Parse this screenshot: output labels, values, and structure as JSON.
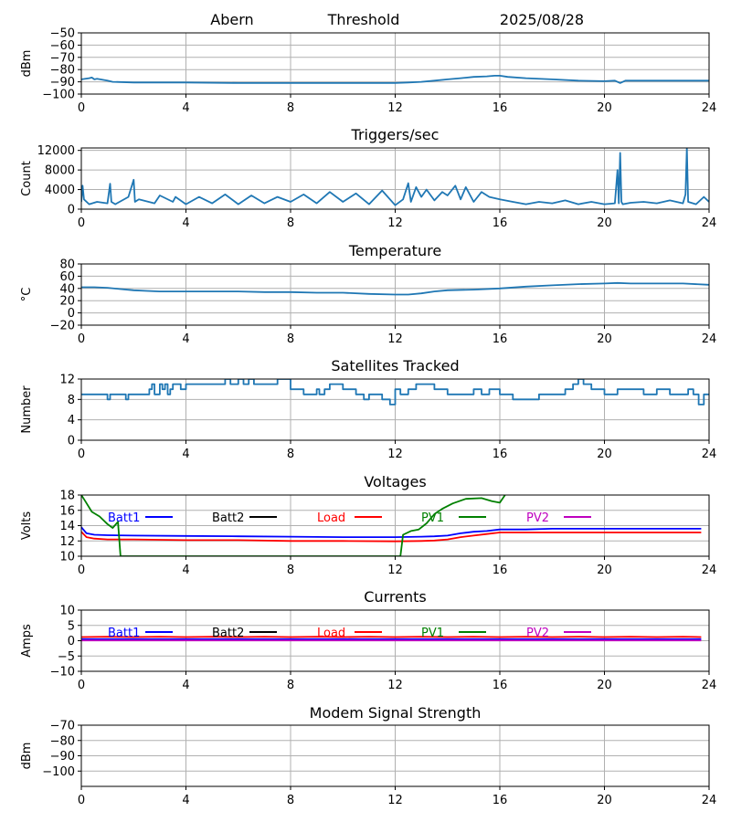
{
  "header": {
    "station": "Abern",
    "mode": "Threshold",
    "date": "2025/08/28"
  },
  "colors": {
    "primary": "#1f77b4",
    "batt1": "#0000ff",
    "batt2": "#000000",
    "load": "#ff0000",
    "pv1": "#008000",
    "pv2": "#bf00bf",
    "grid": "#b0b0b0"
  },
  "chart_data": [
    {
      "id": "signal",
      "type": "line",
      "title": "",
      "ylabel": "dBm",
      "xlim": [
        0,
        24
      ],
      "ylim": [
        -100,
        -50
      ],
      "x_ticks": [
        0,
        4,
        8,
        12,
        16,
        20,
        24
      ],
      "y_ticks": [
        -100,
        -90,
        -80,
        -70,
        -60,
        -50
      ],
      "grid": true,
      "series": [
        {
          "color": "#1f77b4",
          "x": [
            0,
            0.3,
            0.4,
            0.5,
            0.6,
            1.0,
            1.2,
            2,
            4,
            6,
            8,
            10,
            11,
            12,
            12.5,
            13,
            13.5,
            14,
            14.5,
            15,
            15.5,
            15.8,
            16,
            16.3,
            17,
            18,
            19,
            20,
            20.4,
            20.6,
            20.8,
            21,
            22,
            23,
            24
          ],
          "y": [
            -88,
            -87,
            -86.5,
            -88,
            -87.5,
            -89,
            -90,
            -90.5,
            -90.5,
            -91,
            -91,
            -91,
            -91,
            -91,
            -90.5,
            -90,
            -89,
            -88,
            -87,
            -86,
            -85.5,
            -85,
            -85,
            -86,
            -87,
            -88,
            -89,
            -89.5,
            -89,
            -91,
            -89,
            -89,
            -89,
            -89,
            -89
          ]
        }
      ]
    },
    {
      "id": "triggers",
      "type": "line",
      "title": "Triggers/sec",
      "ylabel": "Count",
      "xlim": [
        0,
        24
      ],
      "ylim": [
        0,
        12500
      ],
      "x_ticks": [
        0,
        4,
        8,
        12,
        16,
        20,
        24
      ],
      "y_ticks": [
        0,
        4000,
        8000,
        12000
      ],
      "grid": true,
      "series": [
        {
          "color": "#1f77b4",
          "x": [
            0,
            0.05,
            0.1,
            0.3,
            0.6,
            1.0,
            1.1,
            1.15,
            1.3,
            1.8,
            2.0,
            2.05,
            2.2,
            2.8,
            3.0,
            3.5,
            3.6,
            4.0,
            4.5,
            5.0,
            5.5,
            6.0,
            6.5,
            7.0,
            7.5,
            8.0,
            8.5,
            9.0,
            9.5,
            10.0,
            10.5,
            11.0,
            11.5,
            12.0,
            12.3,
            12.5,
            12.6,
            12.8,
            13.0,
            13.2,
            13.5,
            13.8,
            14.0,
            14.3,
            14.5,
            14.7,
            15.0,
            15.3,
            15.6,
            16.0,
            16.5,
            17.0,
            17.5,
            18.0,
            18.5,
            19.0,
            19.5,
            20.0,
            20.4,
            20.5,
            20.55,
            20.6,
            20.65,
            20.7,
            21.0,
            21.5,
            22.0,
            22.5,
            23.0,
            23.1,
            23.15,
            23.2,
            23.5,
            23.8,
            24
          ],
          "y": [
            1500,
            4800,
            2000,
            1000,
            1500,
            1200,
            5200,
            1500,
            1000,
            2500,
            6000,
            1500,
            2000,
            1200,
            2800,
            1500,
            2500,
            1000,
            2500,
            1200,
            3000,
            1000,
            2800,
            1200,
            2500,
            1500,
            3000,
            1200,
            3500,
            1500,
            3200,
            1000,
            3800,
            800,
            2000,
            5300,
            1500,
            4500,
            2500,
            4000,
            1800,
            3500,
            2800,
            4800,
            2000,
            4500,
            1500,
            3500,
            2500,
            2000,
            1500,
            1000,
            1500,
            1200,
            1800,
            1000,
            1500,
            1000,
            1200,
            8000,
            1200,
            11500,
            1500,
            1000,
            1300,
            1500,
            1200,
            1800,
            1200,
            3000,
            12500,
            1500,
            1000,
            2500,
            1500
          ]
        }
      ]
    },
    {
      "id": "temperature",
      "type": "line",
      "title": "Temperature",
      "ylabel": "°C",
      "xlim": [
        0,
        24
      ],
      "ylim": [
        -20,
        80
      ],
      "x_ticks": [
        0,
        4,
        8,
        12,
        16,
        20,
        24
      ],
      "y_ticks": [
        -20,
        0,
        20,
        40,
        60,
        80
      ],
      "grid": true,
      "series": [
        {
          "color": "#1f77b4",
          "x": [
            0,
            0.5,
            1,
            1.5,
            2,
            2.5,
            3,
            4,
            6,
            7,
            8,
            9,
            10,
            11,
            12,
            12.5,
            13,
            13.5,
            14,
            15,
            16,
            17,
            18,
            19,
            20,
            20.5,
            21,
            22,
            23,
            24
          ],
          "y": [
            42,
            42,
            41,
            39,
            37,
            36,
            35,
            35,
            35,
            34,
            34,
            33,
            33,
            31,
            30,
            30,
            32,
            35,
            37,
            38,
            40,
            43,
            45,
            47,
            48,
            49,
            48,
            48,
            48,
            46
          ]
        }
      ]
    },
    {
      "id": "satellites",
      "type": "line",
      "title": "Satellites Tracked",
      "ylabel": "Number",
      "xlim": [
        0,
        24
      ],
      "ylim": [
        0,
        12
      ],
      "x_ticks": [
        0,
        4,
        8,
        12,
        16,
        20,
        24
      ],
      "y_ticks": [
        0,
        4,
        8,
        12
      ],
      "grid": true,
      "step": true,
      "series": [
        {
          "color": "#1f77b4",
          "x": [
            0,
            1,
            1.1,
            1.3,
            1.7,
            1.8,
            2.6,
            2.7,
            2.8,
            3.0,
            3.1,
            3.2,
            3.3,
            3.4,
            3.5,
            3.8,
            4.0,
            4.5,
            5.0,
            5.5,
            5.7,
            6.0,
            6.2,
            6.4,
            6.6,
            7.0,
            7.5,
            7.8,
            8.0,
            8.5,
            9.0,
            9.1,
            9.3,
            9.5,
            10.0,
            10.5,
            10.8,
            11.0,
            11.5,
            11.8,
            12.0,
            12.2,
            12.5,
            12.8,
            13.0,
            13.5,
            14.0,
            14.5,
            15.0,
            15.3,
            15.6,
            16.0,
            16.5,
            17.0,
            17.5,
            18.0,
            18.5,
            18.8,
            19.0,
            19.2,
            19.5,
            20.0,
            20.5,
            21.0,
            21.5,
            22.0,
            22.5,
            23.0,
            23.2,
            23.4,
            23.6,
            23.8,
            24
          ],
          "y": [
            9,
            8,
            9,
            9,
            8,
            9,
            10,
            11,
            9,
            11,
            10,
            11,
            9,
            10,
            11,
            10,
            11,
            11,
            11,
            12,
            11,
            12,
            11,
            12,
            11,
            11,
            12,
            12,
            10,
            9,
            10,
            9,
            10,
            11,
            10,
            9,
            8,
            9,
            8,
            7,
            10,
            9,
            10,
            11,
            11,
            10,
            9,
            9,
            10,
            9,
            10,
            9,
            8,
            8,
            9,
            9,
            10,
            11,
            12,
            11,
            10,
            9,
            10,
            10,
            9,
            10,
            9,
            9,
            10,
            9,
            7,
            9,
            9
          ]
        }
      ]
    },
    {
      "id": "voltages",
      "type": "line",
      "title": "Voltages",
      "ylabel": "Volts",
      "xlim": [
        0,
        24
      ],
      "ylim": [
        10,
        18
      ],
      "x_ticks": [
        0,
        4,
        8,
        12,
        16,
        20,
        24
      ],
      "y_ticks": [
        10,
        12,
        14,
        16,
        18
      ],
      "grid": true,
      "legend": [
        "Batt1",
        "Batt2",
        "Load",
        "PV1",
        "PV2"
      ],
      "series": [
        {
          "name": "Batt1",
          "color": "#0000ff",
          "x": [
            0,
            0.2,
            0.5,
            1,
            2,
            4,
            6,
            8,
            10,
            12,
            13,
            13.5,
            14,
            14.5,
            15,
            15.5,
            16,
            17,
            18,
            20,
            22,
            23.7
          ],
          "y": [
            13.8,
            13.0,
            12.8,
            12.75,
            12.7,
            12.65,
            12.6,
            12.55,
            12.5,
            12.5,
            12.55,
            12.6,
            12.7,
            13.0,
            13.2,
            13.3,
            13.5,
            13.5,
            13.6,
            13.6,
            13.6,
            13.6
          ]
        },
        {
          "name": "Load",
          "color": "#ff0000",
          "x": [
            0,
            0.2,
            0.5,
            1,
            2,
            4,
            6,
            8,
            10,
            12,
            13,
            13.5,
            14,
            14.5,
            15,
            15.5,
            16,
            17,
            18,
            20,
            22,
            23.7
          ],
          "y": [
            13.2,
            12.5,
            12.3,
            12.2,
            12.2,
            12.1,
            12.1,
            12.0,
            12.0,
            11.95,
            12.0,
            12.05,
            12.2,
            12.5,
            12.7,
            12.9,
            13.1,
            13.1,
            13.1,
            13.1,
            13.1,
            13.1
          ]
        },
        {
          "name": "PV1",
          "color": "#008000",
          "x": [
            0,
            0.15,
            0.4,
            0.7,
            1.0,
            1.2,
            1.4,
            1.5,
            12.2,
            12.3,
            12.6,
            12.9,
            13.2,
            13.5,
            13.8,
            14.2,
            14.7,
            15.3,
            15.7,
            16.0,
            16.2
          ],
          "y": [
            18,
            17.2,
            15.8,
            15.2,
            14.2,
            13.7,
            14.5,
            10,
            10,
            12.8,
            13.3,
            13.5,
            14.3,
            15.5,
            16.2,
            16.9,
            17.5,
            17.6,
            17.2,
            17.0,
            18
          ]
        }
      ]
    },
    {
      "id": "currents",
      "type": "line",
      "title": "Currents",
      "ylabel": "Amps",
      "xlim": [
        0,
        24
      ],
      "ylim": [
        -10,
        10
      ],
      "x_ticks": [
        0,
        4,
        8,
        12,
        16,
        20,
        24
      ],
      "y_ticks": [
        -10,
        -5,
        0,
        5,
        10
      ],
      "grid": true,
      "legend": [
        "Batt1",
        "Batt2",
        "Load",
        "PV1",
        "PV2"
      ],
      "series": [
        {
          "name": "Batt1",
          "color": "#0000ff",
          "x": [
            0,
            4,
            8,
            12,
            16,
            20,
            23.7
          ],
          "y": [
            0.5,
            0.5,
            0.5,
            0.5,
            0.5,
            0.5,
            0.5
          ]
        },
        {
          "name": "Load",
          "color": "#ff0000",
          "x": [
            0,
            1,
            2,
            3,
            4,
            5,
            6,
            7,
            8,
            9,
            10,
            11,
            12,
            13,
            14,
            15,
            16,
            17,
            18,
            19,
            20,
            21,
            22,
            23,
            23.7
          ],
          "y": [
            1.2,
            1.3,
            1.2,
            1.3,
            1.2,
            1.3,
            1.2,
            1.3,
            1.2,
            1.3,
            1.2,
            1.3,
            1.2,
            1.3,
            1.2,
            1.3,
            1.2,
            1.3,
            1.2,
            1.3,
            1.2,
            1.3,
            1.2,
            1.3,
            1.2
          ]
        },
        {
          "name": "PV2",
          "color": "#bf00bf",
          "x": [
            0,
            4,
            8,
            12,
            16,
            20,
            23.7
          ],
          "y": [
            0.1,
            0.1,
            0.1,
            0.1,
            0.1,
            0.1,
            0.1
          ]
        }
      ]
    },
    {
      "id": "modem",
      "type": "line",
      "title": "Modem Signal Strength",
      "ylabel": "dBm",
      "xlim": [
        0,
        24
      ],
      "ylim": [
        -110,
        -70
      ],
      "x_ticks": [
        0,
        4,
        8,
        12,
        16,
        20,
        24
      ],
      "y_ticks": [
        -100,
        -90,
        -80,
        -70
      ],
      "grid": true,
      "series": []
    }
  ]
}
